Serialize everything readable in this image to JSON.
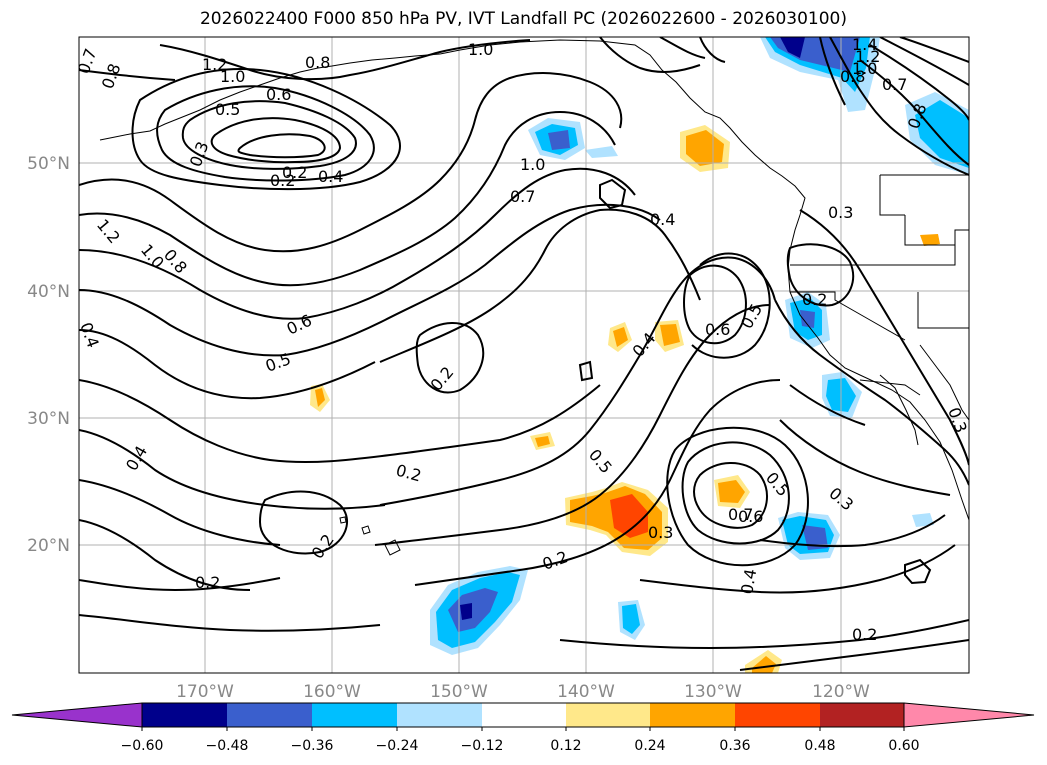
{
  "title": "2026022400 F000 850 hPa PV, IVT Landfall PC (2026022600 - 2026030100)",
  "lat_labels": [
    "50°N",
    "40°N",
    "30°N",
    "20°N"
  ],
  "lon_labels": [
    "170°W",
    "160°W",
    "150°W",
    "140°W",
    "130°W",
    "120°W"
  ],
  "contour_labels": [
    "0.7",
    "0.8",
    "1.2",
    "1.0",
    "0.8",
    "1.0",
    "0.6",
    "0.5",
    "0.3",
    "0.2",
    "0.4",
    "1.0",
    "0.7",
    "0.4",
    "1.4",
    "1.2",
    "1.0",
    "0.8",
    "0.7",
    "0.8",
    "1.2",
    "1.0",
    "0.8",
    "0.3",
    "0.4",
    "0.6",
    "0.5",
    "0.2",
    "0.4",
    "0.6",
    "0.5",
    "0.2",
    "0.3",
    "0.4",
    "0.2",
    "0.5",
    "0.2",
    "0.2",
    "0.3",
    "0.2",
    "0.7",
    "0.5",
    "0.6",
    "0.3",
    "0.4",
    "0.2",
    "0.2"
  ],
  "colorbar": {
    "ticks": [
      "−0.60",
      "−0.48",
      "−0.36",
      "−0.24",
      "−0.12",
      "0.12",
      "0.24",
      "0.36",
      "0.48",
      "0.60"
    ],
    "colors": [
      "#9932cc",
      "#00008b",
      "#3a5fcd",
      "#00bfff",
      "#b0e2ff",
      "#ffffff",
      "#ffe88a",
      "#ffa500",
      "#ff4500",
      "#b22222",
      "#ff88aa"
    ]
  }
}
